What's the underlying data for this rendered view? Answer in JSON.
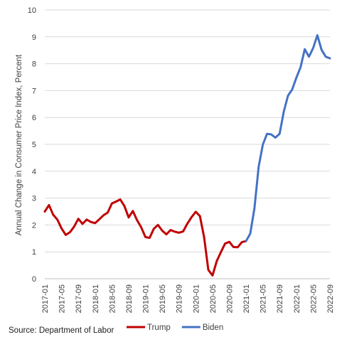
{
  "chart_data": {
    "type": "line",
    "xlabel": "",
    "ylabel": "Annual Change in Consumer Price Index, Percent",
    "ylim": [
      0,
      10
    ],
    "yticks": [
      "0",
      "1",
      "2",
      "3",
      "4",
      "5",
      "6",
      "7",
      "8",
      "9",
      "10"
    ],
    "xticks": [
      "2017-01",
      "2017-05",
      "2017-09",
      "2018-01",
      "2018-05",
      "2018-09",
      "2019-01",
      "2019-05",
      "2019-09",
      "2020-01",
      "2020-05",
      "2020-09",
      "2021-01",
      "2021-05",
      "2021-09",
      "2022-01",
      "2022-05",
      "2022-09"
    ],
    "grid": "horizontal",
    "legend_position": "bottom",
    "series": [
      {
        "name": "Trump",
        "color": "#c00000",
        "x": [
          "2017-01",
          "2017-02",
          "2017-03",
          "2017-04",
          "2017-05",
          "2017-06",
          "2017-07",
          "2017-08",
          "2017-09",
          "2017-10",
          "2017-11",
          "2017-12",
          "2018-01",
          "2018-02",
          "2018-03",
          "2018-04",
          "2018-05",
          "2018-06",
          "2018-07",
          "2018-08",
          "2018-09",
          "2018-10",
          "2018-11",
          "2018-12",
          "2019-01",
          "2019-02",
          "2019-03",
          "2019-04",
          "2019-05",
          "2019-06",
          "2019-07",
          "2019-08",
          "2019-09",
          "2019-10",
          "2019-11",
          "2019-12",
          "2020-01",
          "2020-02",
          "2020-03",
          "2020-04",
          "2020-05",
          "2020-06",
          "2020-07",
          "2020-08",
          "2020-09",
          "2020-10",
          "2020-11",
          "2020-12",
          "2021-01"
        ],
        "values": [
          2.5,
          2.74,
          2.38,
          2.2,
          1.87,
          1.63,
          1.73,
          1.94,
          2.23,
          2.04,
          2.2,
          2.11,
          2.07,
          2.21,
          2.36,
          2.46,
          2.8,
          2.87,
          2.95,
          2.7,
          2.28,
          2.52,
          2.18,
          1.91,
          1.55,
          1.52,
          1.86,
          2.0,
          1.79,
          1.65,
          1.81,
          1.75,
          1.71,
          1.76,
          2.05,
          2.29,
          2.49,
          2.33,
          1.54,
          0.33,
          0.12,
          0.65,
          0.99,
          1.31,
          1.37,
          1.18,
          1.17,
          1.36,
          1.4
        ]
      },
      {
        "name": "Biden",
        "color": "#4472c4",
        "x": [
          "2021-01",
          "2021-02",
          "2021-03",
          "2021-04",
          "2021-05",
          "2021-06",
          "2021-07",
          "2021-08",
          "2021-09",
          "2021-10",
          "2021-11",
          "2021-12",
          "2022-01",
          "2022-02",
          "2022-03",
          "2022-04",
          "2022-05",
          "2022-06",
          "2022-07",
          "2022-08",
          "2022-09"
        ],
        "values": [
          1.4,
          1.68,
          2.62,
          4.16,
          4.99,
          5.39,
          5.37,
          5.25,
          5.39,
          6.22,
          6.81,
          7.04,
          7.48,
          7.87,
          8.54,
          8.26,
          8.58,
          9.06,
          8.52,
          8.26,
          8.2
        ]
      }
    ]
  },
  "source": "Source: Department of Labor"
}
